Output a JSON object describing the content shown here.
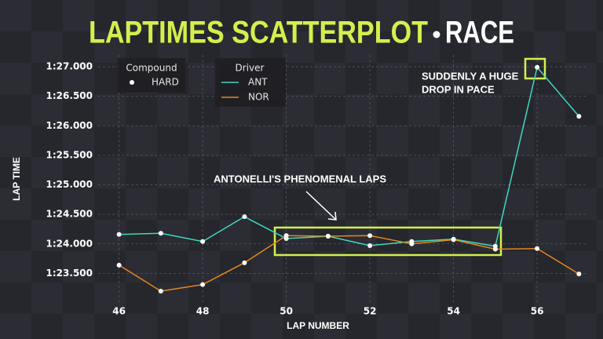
{
  "chart_data": {
    "type": "line",
    "title": "LAPTIMES SCATTERPLOT",
    "subtitle": "RACE",
    "x_label": "LAP NUMBER",
    "y_label": "LAP TIME",
    "x": [
      46,
      47,
      48,
      49,
      50,
      51,
      52,
      53,
      54,
      55,
      56,
      57
    ],
    "series": [
      {
        "name": "ANT",
        "color": "#3ed8bf",
        "values": [
          84.16,
          84.18,
          84.04,
          84.46,
          84.09,
          84.13,
          83.97,
          84.04,
          84.08,
          83.96,
          86.99,
          86.16
        ]
      },
      {
        "name": "NOR",
        "color": "#e3891c",
        "values": [
          83.64,
          83.2,
          83.31,
          83.68,
          84.14,
          84.13,
          84.14,
          84.0,
          84.07,
          83.91,
          83.92,
          83.49
        ]
      }
    ],
    "legend_title": "Driver",
    "marker_legend": {
      "title": "Compound",
      "label": "HARD",
      "color": "#ffffff"
    },
    "xlim": [
      45.5,
      57.2
    ],
    "ylim": [
      83.0,
      87.2
    ],
    "xticks": [
      46,
      48,
      50,
      52,
      54,
      56
    ],
    "yticks": [
      {
        "value": 83.5,
        "label": "1:23.500"
      },
      {
        "value": 84,
        "label": "1:24.000"
      },
      {
        "value": 84.5,
        "label": "1:24.500"
      },
      {
        "value": 85,
        "label": "1:25.000"
      },
      {
        "value": 85.5,
        "label": "1:25.500"
      },
      {
        "value": 86,
        "label": "1:26.000"
      },
      {
        "value": 86.5,
        "label": "1:26.500"
      },
      {
        "value": 87,
        "label": "1:27.000"
      }
    ],
    "grid": true,
    "annotations": [
      {
        "lines": [
          "SUDDENLY A HUGE",
          "DROP IN PACE"
        ]
      },
      {
        "lines": [
          "ANTONELLI'S PHENOMENAL LAPS"
        ]
      }
    ]
  }
}
